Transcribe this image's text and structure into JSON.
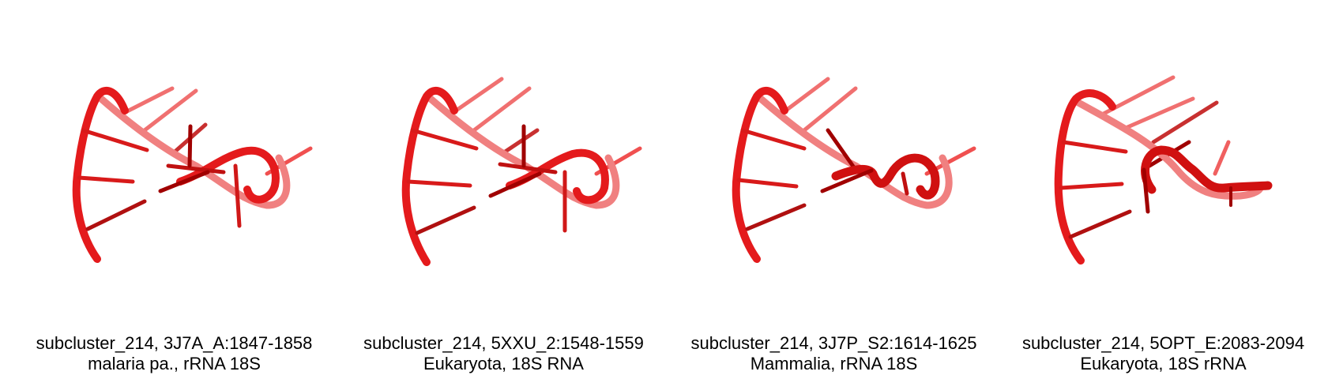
{
  "panels": [
    {
      "id_line": "subcluster_214, 3J7A_A:1847-1858",
      "org_line": "malaria pa., rRNA 18S"
    },
    {
      "id_line": "subcluster_214, 5XXU_2:1548-1559",
      "org_line": "Eukaryota, 18S RNA"
    },
    {
      "id_line": "subcluster_214, 3J7P_S2:1614-1625",
      "org_line": "Mammalia, rRNA 18S"
    },
    {
      "id_line": "subcluster_214, 5OPT_E:2083-2094",
      "org_line": "Eukaryota, 18S rRNA"
    }
  ],
  "colors": {
    "backbone": "#e41a1c",
    "backbone_light": "#f07070",
    "backbone_dark": "#a00000",
    "background": "#ffffff",
    "caption_text": "#000000"
  },
  "icons": [
    "rna-structure-render"
  ]
}
